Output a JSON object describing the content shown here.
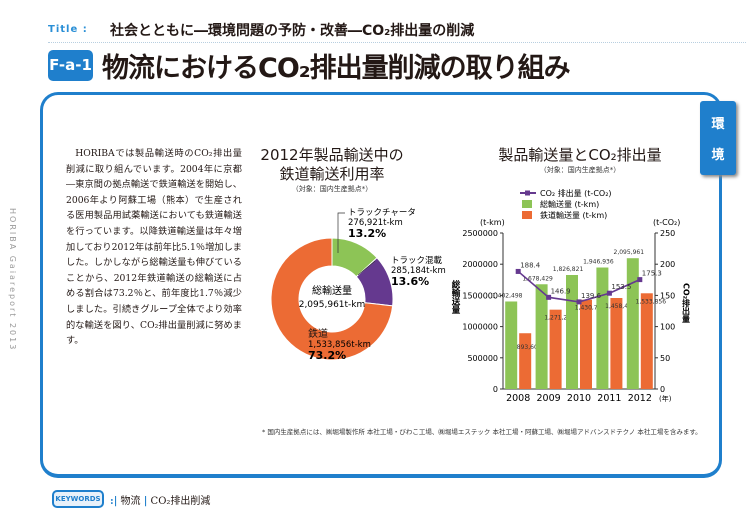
{
  "header": {
    "title_label": "Title :",
    "subtitle": "社会とともに―環境問題の予防・改善―CO₂排出量の削減",
    "code": "F-a-1",
    "heading": "物流におけるCO₂排出量削減の取り組み"
  },
  "side_tab": {
    "line1": "環",
    "line2": "境"
  },
  "side_text": "HORIBA Gaiareport 2013",
  "body_text": "HORIBAでは製品輸送時のCO₂排出量削減に取り組んでいます。2004年に京都―東京間の拠点輸送で鉄道輸送を開始し、2006年より阿蘇工場（熊本）で生産される医用製品用試薬輸送においても鉄道輸送を行っています。以降鉄道輸送量は年々増加しており2012年は前年比5.1％増加しました。しかしながら総輸送量も伸びていることから、2012年鉄道輸送の総輸送に占める割合は73.2％と、前年度比1.7％減少しました。引続きグループ全体でより効率的な輸送を図り、CO₂排出量削減に努めます。",
  "footnote": "* 国内生産拠点には、㈱堀場製作所 本社工場・びわこ工場、㈱堀場エステック 本社工場・阿蘇工場、㈱堀場アドバンスドテクノ 本社工場を含みます。",
  "keywords": {
    "label": "KEYWORDS",
    "items": [
      "物流",
      "CO₂排出削減"
    ]
  },
  "chart_data": [
    {
      "type": "pie",
      "title_line1": "2012年製品輸送中の",
      "title_line2": "鉄道輸送利用率",
      "subtitle": "（対象：国内生産拠点*）",
      "center_label": "総輸送量",
      "center_value": "2,095,961t-km",
      "slices": [
        {
          "name": "トラックチャータ",
          "value_label": "276,921t-km",
          "percent": 13.2,
          "percent_label": "13.2%",
          "color": "#8dc456"
        },
        {
          "name": "トラック混載",
          "value_label": "285,184t-km",
          "percent": 13.6,
          "percent_label": "13.6%",
          "color": "#65398f"
        },
        {
          "name": "鉄道",
          "value_label": "1,533,856t-km",
          "percent": 73.2,
          "percent_label": "73.2%",
          "color": "#ec6b34"
        }
      ]
    },
    {
      "type": "bar",
      "title": "製品輸送量とCO₂排出量",
      "subtitle": "（対象：国内生産拠点*）",
      "categories": [
        "2008",
        "2009",
        "2010",
        "2011",
        "2012"
      ],
      "x_unit": "(年)",
      "y_left": {
        "label": "総輸送量",
        "unit": "(t-km)",
        "range": [
          0,
          2500000
        ],
        "ticks": [
          "0",
          "500000",
          "1000000",
          "1500000",
          "2000000",
          "2500000"
        ]
      },
      "y_right": {
        "label": "CO₂排出量",
        "unit": "(t-CO₂)",
        "range": [
          0,
          250
        ],
        "ticks": [
          "0",
          "50",
          "100",
          "150",
          "200",
          "250"
        ]
      },
      "series": [
        {
          "name": "総輸送量 (t-km)",
          "kind": "bar",
          "axis": "left",
          "color": "#8dc456",
          "values": [
            1402498,
            1678429,
            1826821,
            1946936,
            2095961
          ],
          "labels": [
            "1,402,498",
            "1,678,429",
            "1,826,821",
            "1,946,936",
            "2,095,961"
          ]
        },
        {
          "name": "鉄道輸送量 (t-km)",
          "kind": "bar",
          "axis": "left",
          "color": "#ec6b34",
          "values": [
            893600,
            1271275,
            1430740,
            1458408,
            1533856
          ],
          "labels": [
            "893,600",
            "1,271,275",
            "1,430,740",
            "1,458,408",
            "1,533,856"
          ]
        },
        {
          "name": "CO₂ 排出量 (t-CO₂)",
          "kind": "line",
          "axis": "right",
          "color": "#65398f",
          "values": [
            188.4,
            146.9,
            139.6,
            153.5,
            175.3
          ],
          "labels": [
            "188.4",
            "146.9",
            "139.6",
            "153.5",
            "175.3"
          ]
        }
      ],
      "legend": "top"
    }
  ]
}
